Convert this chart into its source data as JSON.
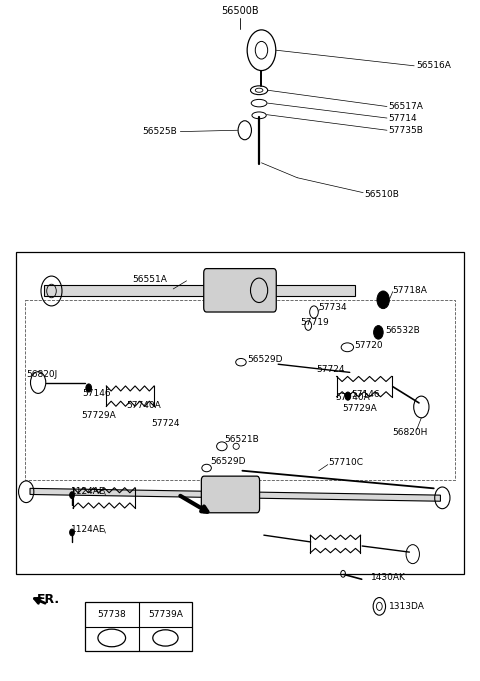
{
  "bg_color": "#ffffff",
  "line_color": "#000000",
  "fig_width": 4.8,
  "fig_height": 6.81,
  "dpi": 100,
  "title": "56500B",
  "table_labels_top": [
    "57738",
    "57739A"
  ],
  "fr_label": "FR.",
  "parts_labels": [
    "56500B",
    "56516A",
    "56517A",
    "57714",
    "56525B",
    "57735B",
    "56510B",
    "56551A",
    "57718A",
    "57734",
    "57719",
    "56532B",
    "57720",
    "56529D",
    "57724",
    "56820J",
    "57146",
    "57740A",
    "57146",
    "57724",
    "57740A",
    "57729A",
    "57729A",
    "56820H",
    "56521B",
    "56529D",
    "57710C",
    "1124AE",
    "1124AE",
    "1430AK",
    "1313DA"
  ]
}
